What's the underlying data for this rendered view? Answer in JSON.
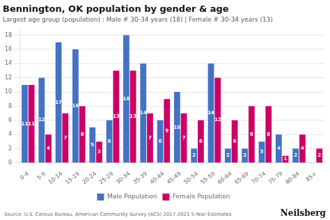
{
  "chart_data": {
    "type": "bar",
    "title": "Bennington, OK population by gender & age",
    "subtitle": "Largest age group (population) : Male # 30-34 years (18) | Female # 30-34 years (13)",
    "source": "Source: U.S. Census Bureau, American Community Survey (ACS) 2017-2021 5-Year Estimates",
    "annotations": [
      "Neilsberg"
    ],
    "categories": [
      "0-4",
      "5-9",
      "10-14",
      "15-19",
      "20-24",
      "25-29",
      "30-34",
      "35-39",
      "40-44",
      "45-49",
      "50-54",
      "55-59",
      "60-64",
      "65-69",
      "70-74",
      "75-79",
      "80-84",
      "85+"
    ],
    "series": [
      {
        "name": "Male Population",
        "color": "#4472C4",
        "values": [
          11,
          12,
          17,
          16,
          5,
          6,
          18,
          14,
          6,
          10,
          2,
          14,
          2,
          2,
          3,
          4,
          2,
          0
        ]
      },
      {
        "name": "Female Population",
        "color": "#CC0066",
        "values": [
          11,
          4,
          7,
          8,
          3,
          13,
          13,
          7,
          9,
          7,
          6,
          12,
          6,
          8,
          8,
          1,
          4,
          2
        ]
      }
    ],
    "ylim": [
      0,
      19
    ],
    "yticks": [
      0,
      2,
      4,
      6,
      8,
      10,
      12,
      14,
      16,
      18
    ],
    "grid": true,
    "legend": "bottom",
    "data_labels": true
  }
}
